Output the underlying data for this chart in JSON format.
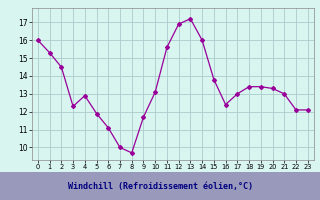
{
  "x": [
    0,
    1,
    2,
    3,
    4,
    5,
    6,
    7,
    8,
    9,
    10,
    11,
    12,
    13,
    14,
    15,
    16,
    17,
    18,
    19,
    20,
    21,
    22,
    23
  ],
  "y": [
    16.0,
    15.3,
    14.5,
    12.3,
    12.9,
    11.9,
    11.1,
    10.0,
    9.7,
    11.7,
    13.1,
    15.6,
    16.9,
    17.2,
    16.0,
    13.8,
    12.4,
    13.0,
    13.4,
    13.4,
    13.3,
    13.0,
    12.1,
    12.1
  ],
  "line_color": "#990099",
  "marker": "D",
  "marker_size": 2,
  "bg_color": "#d8f5f0",
  "grid_color": "#aacccc",
  "xlabel": "Windchill (Refroidissement éolien,°C)",
  "xlabel_color": "#000080",
  "xlabel_bg": "#9999bb",
  "yticks": [
    10,
    11,
    12,
    13,
    14,
    15,
    16,
    17
  ],
  "xticks": [
    0,
    1,
    2,
    3,
    4,
    5,
    6,
    7,
    8,
    9,
    10,
    11,
    12,
    13,
    14,
    15,
    16,
    17,
    18,
    19,
    20,
    21,
    22,
    23
  ],
  "ylim": [
    9.3,
    17.8
  ],
  "xlim": [
    -0.5,
    23.5
  ],
  "figw": 3.2,
  "figh": 2.0,
  "dpi": 100
}
